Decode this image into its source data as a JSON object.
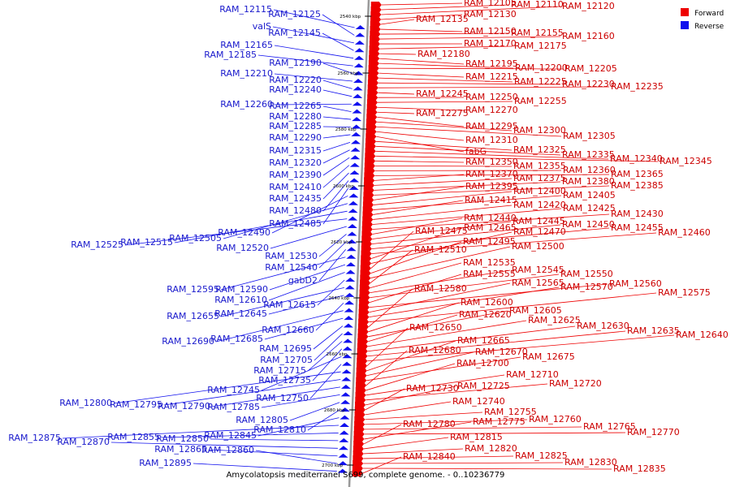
{
  "caption": "Amycolatopsis mediterranei S699, complete genome. - 0..10236779",
  "legend": [
    {
      "label": "Forward",
      "color": "#ee0000"
    },
    {
      "label": "Reverse",
      "color": "#1010ee"
    }
  ],
  "colors": {
    "forward": "#ee0000",
    "reverse": "#1010ee",
    "axis": "#999999"
  },
  "ticks": [
    {
      "label": "2540 kbp",
      "pos": 2540
    },
    {
      "label": "2560 kbp",
      "pos": 2560
    },
    {
      "label": "2580 kbp",
      "pos": 2580
    },
    {
      "label": "2600 kbp",
      "pos": 2600
    },
    {
      "label": "2620 kbp",
      "pos": 2620
    },
    {
      "label": "2640 kbp",
      "pos": 2640
    },
    {
      "label": "2660 kbp",
      "pos": 2660
    },
    {
      "label": "2680 kbp",
      "pos": 2680
    },
    {
      "label": "2700 kbp",
      "pos": 2700
    }
  ],
  "forward_genes": [
    "RAM_12105",
    "RAM_12110",
    "RAM_12120",
    "RAM_12130",
    "RAM_12135",
    "RAM_12150",
    "RAM_12155",
    "RAM_12160",
    "RAM_12170",
    "RAM_12175",
    "RAM_12180",
    "RAM_12195",
    "RAM_12200",
    "RAM_12205",
    "RAM_12215",
    "RAM_12225",
    "RAM_12230",
    "RAM_12235",
    "RAM_12245",
    "RAM_12250",
    "RAM_12255",
    "RAM_12270",
    "RAM_12275",
    "RAM_12295",
    "RAM_12300",
    "RAM_12305",
    "RAM_12310",
    "fabG",
    "RAM_12325",
    "RAM_12335",
    "RAM_12340",
    "RAM_12345",
    "RAM_12350",
    "RAM_12355",
    "RAM_12360",
    "RAM_12365",
    "RAM_12370",
    "RAM_12375",
    "RAM_12380",
    "RAM_12385",
    "RAM_12395",
    "RAM_12400",
    "RAM_12405",
    "RAM_12415",
    "RAM_12420",
    "RAM_12425",
    "RAM_12430",
    "RAM_12440",
    "RAM_12445",
    "RAM_12450",
    "RAM_12455",
    "RAM_12460",
    "RAM_12465",
    "RAM_12470",
    "RAM_12475",
    "RAM_12495",
    "RAM_12500",
    "RAM_12510",
    "RAM_12535",
    "RAM_12545",
    "RAM_12550",
    "RAM_12555",
    "RAM_12560",
    "RAM_12565",
    "RAM_12570",
    "RAM_12575",
    "RAM_12580",
    "RAM_12600",
    "RAM_12605",
    "RAM_12620",
    "RAM_12625",
    "RAM_12630",
    "RAM_12635",
    "RAM_12640",
    "RAM_12650",
    "RAM_12665",
    "RAM_12670",
    "RAM_12675",
    "RAM_12680",
    "RAM_12700",
    "RAM_12710",
    "RAM_12720",
    "RAM_12725",
    "RAM_12730",
    "RAM_12740",
    "RAM_12755",
    "RAM_12760",
    "RAM_12765",
    "RAM_12770",
    "RAM_12775",
    "RAM_12780",
    "RAM_12815",
    "RAM_12820",
    "RAM_12825",
    "RAM_12830",
    "RAM_12835",
    "RAM_12840"
  ],
  "reverse_genes": [
    "RAM_12115",
    "RAM_12125",
    "valS",
    "RAM_12145",
    "RAM_12165",
    "RAM_12185",
    "RAM_12190",
    "RAM_12210",
    "RAM_12220",
    "RAM_12240",
    "RAM_12260",
    "RAM_12265",
    "RAM_12280",
    "RAM_12285",
    "RAM_12290",
    "RAM_12315",
    "RAM_12320",
    "RAM_12390",
    "RAM_12410",
    "RAM_12435",
    "RAM_12480",
    "RAM_12485",
    "RAM_12490",
    "RAM_12505",
    "RAM_12515",
    "RAM_12525",
    "RAM_12520",
    "RAM_12530",
    "RAM_12540",
    "gabD2",
    "RAM_12595",
    "RAM_12590",
    "RAM_12610",
    "RAM_12615",
    "RAM_12655",
    "RAM_12645",
    "RAM_12660",
    "RAM_12690",
    "RAM_12685",
    "RAM_12695",
    "RAM_12705",
    "RAM_12715",
    "RAM_12735",
    "RAM_12745",
    "RAM_12750",
    "RAM_12800",
    "RAM_12795",
    "RAM_12790",
    "RAM_12785",
    "RAM_12805",
    "RAM_12810",
    "RAM_12845",
    "RAM_12875",
    "RAM_12855",
    "RAM_12850",
    "RAM_12870",
    "RAM_12865",
    "RAM_12860",
    "RAM_12895"
  ]
}
